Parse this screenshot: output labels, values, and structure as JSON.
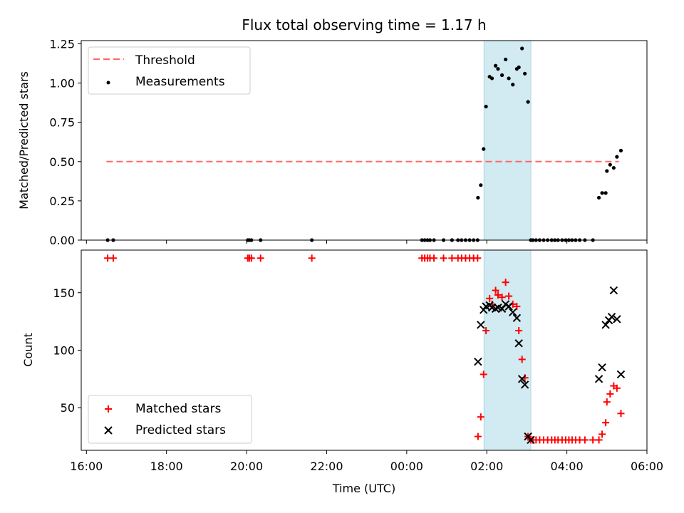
{
  "chart_data": {
    "title": "Flux total observing time = 1.17 h",
    "xlabel": "Time (UTC)",
    "xticks": [
      "16:00",
      "18:00",
      "20:00",
      "22:00",
      "00:00",
      "02:00",
      "04:00",
      "06:00"
    ],
    "x_range_hours": [
      15.87,
      30.0
    ],
    "highlight_span_hours": [
      25.93,
      27.1
    ],
    "highlight_color": "#add8e6",
    "panels": [
      {
        "type": "scatter",
        "ylabel": "Matched/Predicted stars",
        "ylim": [
          0,
          1.27
        ],
        "yticks": [
          "0.00",
          "0.25",
          "0.50",
          "0.75",
          "1.00",
          "1.25"
        ],
        "legend_position": "top-left",
        "series": [
          {
            "name": "Threshold",
            "style": "dashed-line",
            "color": "#ff6666",
            "x": [
              16.5,
              29.3
            ],
            "y": [
              0.5,
              0.5
            ]
          },
          {
            "name": "Measurements",
            "style": "dot",
            "color": "#000000",
            "x": [
              16.53,
              16.67,
              20.03,
              20.07,
              20.12,
              20.35,
              21.63,
              24.38,
              24.45,
              24.52,
              24.58,
              24.68,
              24.92,
              25.13,
              25.28,
              25.37,
              25.47,
              25.57,
              25.67,
              25.77,
              25.78,
              25.85,
              25.92,
              25.98,
              26.07,
              26.13,
              26.22,
              26.28,
              26.38,
              26.47,
              26.55,
              26.65,
              26.75,
              26.8,
              26.88,
              26.95,
              27.03,
              27.1,
              27.15,
              27.23,
              27.32,
              27.42,
              27.52,
              27.62,
              27.7,
              27.78,
              27.88,
              27.97,
              28.05,
              28.13,
              28.22,
              28.32,
              28.45,
              28.65,
              28.8,
              28.88,
              28.97,
              29.0,
              29.08,
              29.17,
              29.25,
              29.35
            ],
            "y": [
              0,
              0,
              0,
              0,
              0,
              0,
              0,
              0,
              0,
              0,
              0,
              0,
              0,
              0,
              0,
              0,
              0,
              0,
              0,
              0,
              0.27,
              0.35,
              0.58,
              0.85,
              1.04,
              1.03,
              1.11,
              1.09,
              1.05,
              1.15,
              1.03,
              0.99,
              1.09,
              1.1,
              1.22,
              1.06,
              0.88,
              0,
              0,
              0,
              0,
              0,
              0,
              0,
              0,
              0,
              0,
              0,
              0,
              0,
              0,
              0,
              0,
              0,
              0.27,
              0.3,
              0.3,
              0.44,
              0.48,
              0.46,
              0.53,
              0.57
            ]
          }
        ]
      },
      {
        "type": "scatter",
        "ylabel": "Count",
        "ylim": [
          13,
          187
        ],
        "yticks": [
          "50",
          "100",
          "150"
        ],
        "legend_position": "bottom-left",
        "series": [
          {
            "name": "Matched stars",
            "marker": "plus",
            "color": "#ff0000",
            "x": [
              16.53,
              16.67,
              20.03,
              20.07,
              20.12,
              20.35,
              21.63,
              24.38,
              24.45,
              24.52,
              24.58,
              24.68,
              24.92,
              25.13,
              25.28,
              25.37,
              25.47,
              25.57,
              25.67,
              25.77,
              25.78,
              25.85,
              25.92,
              25.98,
              26.07,
              26.13,
              26.22,
              26.28,
              26.38,
              26.47,
              26.55,
              26.65,
              26.75,
              26.8,
              26.88,
              26.95,
              27.03,
              27.1,
              27.15,
              27.23,
              27.32,
              27.42,
              27.52,
              27.62,
              27.7,
              27.78,
              27.88,
              27.97,
              28.05,
              28.13,
              28.22,
              28.32,
              28.45,
              28.65,
              28.8,
              28.88,
              28.97,
              29.0,
              29.08,
              29.17,
              29.25,
              29.35
            ],
            "y": [
              180,
              180,
              180,
              180,
              180,
              180,
              180,
              180,
              180,
              180,
              180,
              180,
              180,
              180,
              180,
              180,
              180,
              180,
              180,
              180,
              25,
              42,
              79,
              117,
              145,
              140,
              152,
              148,
              146,
              159,
              147,
              140,
              138,
              117,
              92,
              76,
              25,
              22,
              22,
              22,
              22,
              22,
              22,
              22,
              22,
              22,
              22,
              22,
              22,
              22,
              22,
              22,
              22,
              22,
              22,
              27,
              37,
              55,
              62,
              69,
              67,
              45
            ]
          },
          {
            "name": "Predicted stars",
            "marker": "x",
            "color": "#000000",
            "x": [
              25.78,
              25.85,
              25.92,
              25.98,
              26.07,
              26.13,
              26.22,
              26.28,
              26.38,
              26.47,
              26.55,
              26.65,
              26.75,
              26.8,
              26.88,
              26.95,
              27.03,
              27.1,
              28.8,
              28.88,
              28.97,
              29.05,
              29.12,
              29.17,
              29.25,
              29.35
            ],
            "y": [
              90,
              122,
              135,
              138,
              139,
              137,
              136,
              137,
              136,
              140,
              138,
              133,
              128,
              106,
              75,
              70,
              25,
              22,
              75,
              85,
              122,
              126,
              129,
              152,
              127,
              79
            ]
          }
        ]
      }
    ]
  }
}
